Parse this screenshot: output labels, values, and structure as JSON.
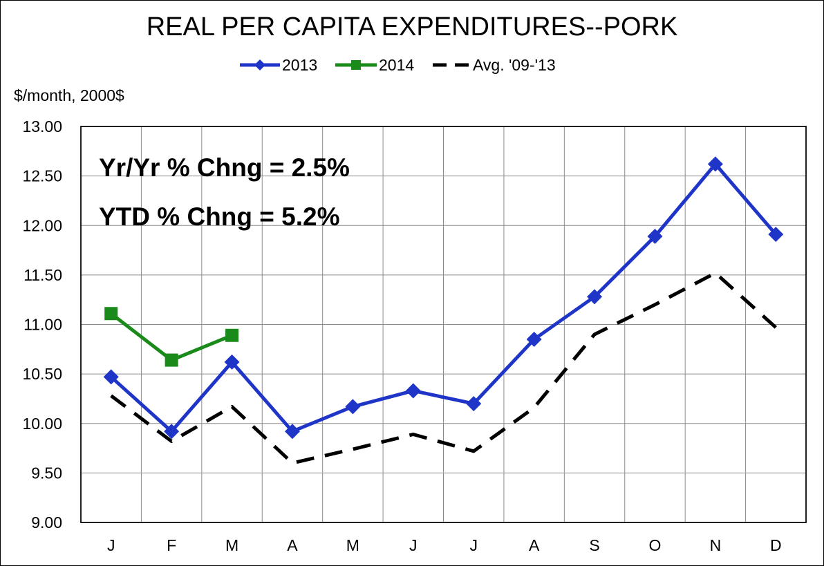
{
  "chart_data": {
    "type": "line",
    "title": "REAL PER CAPITA EXPENDITURES--PORK",
    "ylabel": "$/month, 2000$",
    "xlabel": "",
    "categories": [
      "J",
      "F",
      "M",
      "A",
      "M",
      "J",
      "J",
      "A",
      "S",
      "O",
      "N",
      "D"
    ],
    "ylim": [
      9.0,
      13.0
    ],
    "yticks": [
      "13.00",
      "12.50",
      "12.00",
      "11.50",
      "11.00",
      "10.50",
      "10.00",
      "9.50",
      "9.00"
    ],
    "grid": true,
    "legend_position": "top-center",
    "series": [
      {
        "name": "2013",
        "color": "#1f35c8",
        "marker": "diamond",
        "style": "solid",
        "values": [
          10.47,
          9.92,
          10.62,
          9.92,
          10.17,
          10.33,
          10.2,
          10.85,
          11.28,
          11.89,
          12.62,
          11.91
        ]
      },
      {
        "name": "2014",
        "color": "#1a8a1a",
        "marker": "square",
        "style": "solid",
        "values": [
          11.11,
          10.64,
          10.89,
          null,
          null,
          null,
          null,
          null,
          null,
          null,
          null,
          null
        ]
      },
      {
        "name": "Avg. '09-'13",
        "color": "#000000",
        "marker": "none",
        "style": "dashed",
        "values": [
          10.28,
          9.82,
          10.17,
          9.6,
          9.74,
          9.89,
          9.72,
          10.16,
          10.9,
          11.2,
          11.52,
          10.97
        ]
      }
    ],
    "annotations": [
      "Yr/Yr % Chng = 2.5%",
      "YTD % Chng = 5.2%"
    ]
  }
}
